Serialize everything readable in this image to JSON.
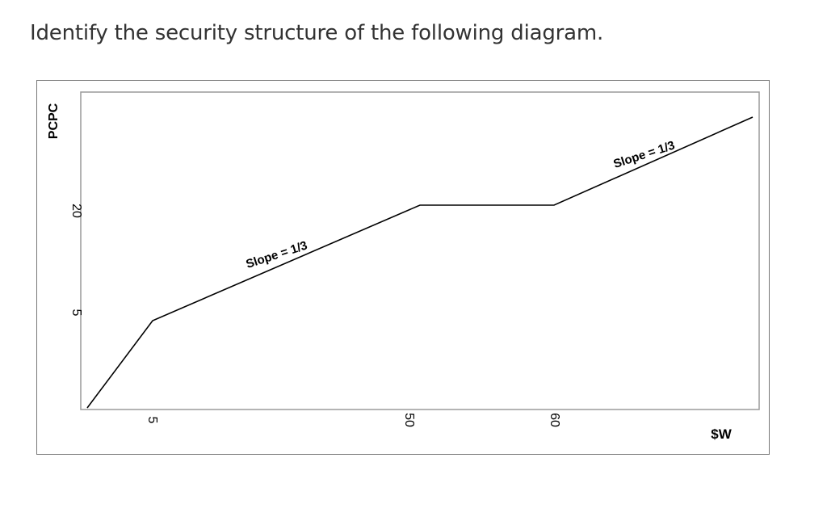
{
  "question": {
    "text": "Identify the security structure of the following diagram."
  },
  "chart_data": {
    "type": "line",
    "title": "",
    "xlabel": "$W",
    "ylabel": "PCPC",
    "x_ticks": [
      "5",
      "50",
      "60"
    ],
    "y_ticks": [
      "20",
      "5"
    ],
    "series": [
      {
        "points": [
          {
            "x": 0,
            "y": 0
          },
          {
            "x": 5,
            "y": 5
          },
          {
            "x": 50,
            "y": 20
          },
          {
            "x": 60,
            "y": 20
          },
          {
            "x": 90,
            "y": 30
          }
        ]
      }
    ],
    "annotations": [
      "Slope = 1/3",
      "Slope = 1/3"
    ],
    "grid": false,
    "colors": {
      "line": "#000000",
      "frame": "#777777",
      "axis_box": "#9a9a9a"
    }
  }
}
